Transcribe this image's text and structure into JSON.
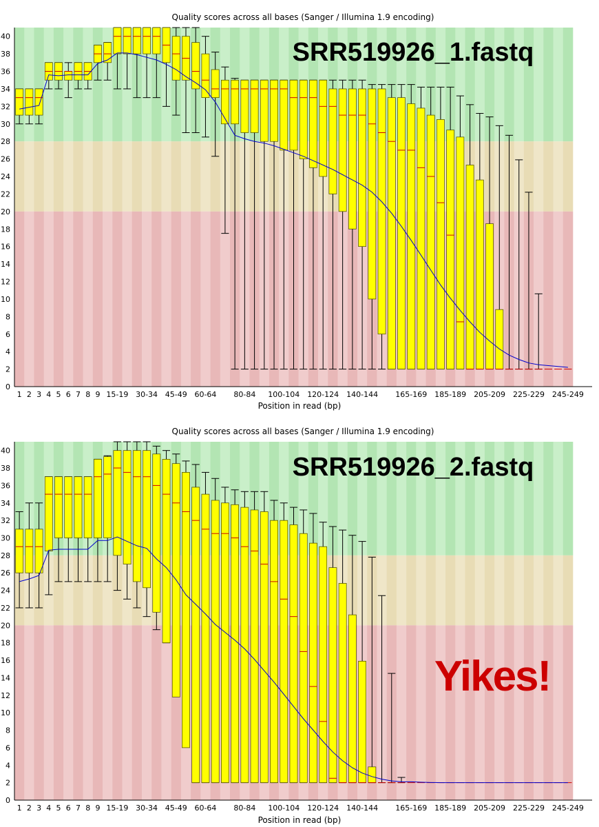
{
  "colors": {
    "good": "#b3e5b3",
    "good_alt": "#c9efc9",
    "warn": "#e8dcb5",
    "warn_alt": "#efe6c8",
    "bad": "#e8b8b8",
    "bad_alt": "#f0cccc",
    "box": "#ffff00",
    "box_stroke": "#444400",
    "median": "#cc0000",
    "mean": "#0000cc",
    "whisker": "#000000",
    "yikes": "#cc0000"
  },
  "chart_data": [
    {
      "type": "boxplot",
      "title": "Quality scores across all bases (Sanger / Illumina 1.9 encoding)",
      "xlabel": "Position in read (bp)",
      "ylabel": "",
      "ylim": [
        0,
        41
      ],
      "yticks": [
        0,
        2,
        4,
        6,
        8,
        10,
        12,
        14,
        16,
        18,
        20,
        22,
        24,
        26,
        28,
        30,
        32,
        34,
        36,
        38,
        40
      ],
      "zones": [
        {
          "name": "good",
          "from": 28,
          "to": 41
        },
        {
          "name": "warn",
          "from": 20,
          "to": 28
        },
        {
          "name": "bad",
          "from": 0,
          "to": 20
        }
      ],
      "overlay_label": "SRR519926_1.fastq",
      "categories": [
        "1",
        "2",
        "3",
        "4",
        "5",
        "6",
        "7",
        "8",
        "9",
        "10-14",
        "15-19",
        "20-24",
        "25-29",
        "30-34",
        "35-39",
        "40-44",
        "45-49",
        "50-54",
        "55-59",
        "60-64",
        "65-69",
        "70-74",
        "75-79",
        "80-84",
        "85-89",
        "90-94",
        "95-99",
        "100-104",
        "105-109",
        "110-114",
        "115-119",
        "120-124",
        "125-129",
        "130-134",
        "135-139",
        "140-144",
        "145-149",
        "150-154",
        "155-159",
        "160-164",
        "165-169",
        "170-174",
        "175-179",
        "180-184",
        "185-189",
        "190-194",
        "195-199",
        "200-204",
        "205-209",
        "210-214",
        "215-219",
        "220-224",
        "225-229",
        "230-234",
        "235-239",
        "240-244",
        "245-249"
      ],
      "tick_labels": [
        "1",
        "2",
        "3",
        "4",
        "5",
        "6",
        "7",
        "8",
        "9",
        "15-19",
        "30-34",
        "45-49",
        "60-64",
        "80-84",
        "100-104",
        "120-124",
        "140-144",
        "165-169",
        "185-189",
        "205-209",
        "225-229",
        "245-249"
      ],
      "q1": [
        31,
        31,
        31,
        35,
        35,
        35,
        35,
        35,
        37,
        37,
        38,
        38,
        38,
        38,
        38,
        37,
        35,
        35,
        34,
        33,
        33,
        30,
        30,
        29,
        29,
        28,
        28,
        27,
        27,
        26,
        25,
        24,
        22,
        20,
        18,
        16,
        10,
        6,
        2,
        2,
        2,
        2,
        2,
        2,
        2,
        2,
        2,
        2,
        2,
        2,
        2,
        2,
        2,
        2,
        2,
        2,
        2
      ],
      "q3": [
        34,
        34,
        34,
        37,
        37,
        36,
        37,
        37,
        39,
        39.3,
        41,
        41,
        41,
        41,
        41,
        41,
        40,
        40,
        39.3,
        38,
        36.2,
        35,
        35,
        35,
        35,
        35,
        35,
        35,
        35,
        35,
        35,
        35,
        34,
        34,
        34,
        34,
        34,
        34,
        33,
        33,
        32.3,
        31.8,
        31,
        30.5,
        29.3,
        28.5,
        25.3,
        23.6,
        18.6,
        8.8,
        2,
        2,
        2,
        2,
        2,
        2,
        2
      ],
      "median": [
        33,
        33,
        33,
        36,
        36,
        36,
        36,
        36,
        38,
        38,
        40,
        40,
        40,
        40,
        40,
        39,
        38,
        37.5,
        36,
        35,
        34,
        34,
        34,
        34,
        34,
        34,
        34,
        34,
        33,
        33,
        33,
        32,
        32,
        31,
        31,
        31,
        30,
        29,
        28,
        27,
        27,
        25,
        24,
        21,
        17.3,
        7.4,
        2,
        2,
        2,
        2,
        2,
        2,
        2,
        2,
        2,
        2,
        2
      ],
      "low": [
        30,
        30,
        30,
        34,
        34,
        33,
        34,
        34,
        35,
        35,
        34,
        34,
        33,
        33,
        33,
        32,
        31,
        29,
        29,
        28.5,
        26.3,
        17.5,
        2,
        2,
        2,
        2,
        2,
        2,
        2,
        2,
        2,
        2,
        2,
        2,
        2,
        2,
        2,
        2,
        2,
        2,
        2,
        2,
        2,
        2,
        2,
        2,
        2,
        2,
        2,
        2,
        2,
        2,
        2,
        2,
        2,
        2,
        2
      ],
      "high": [
        34,
        34,
        34,
        37,
        37,
        37,
        37,
        37,
        39,
        39.3,
        41,
        41,
        41,
        41,
        41,
        41,
        41,
        41,
        41,
        40,
        38.2,
        36.5,
        35.2,
        35,
        35,
        35,
        35,
        35,
        35,
        35,
        35,
        35,
        35,
        35,
        35,
        35,
        34.5,
        34.5,
        34.5,
        34.5,
        34.5,
        34.2,
        34.2,
        34.2,
        34.2,
        33.2,
        32.2,
        31.2,
        30.8,
        29.8,
        28.7,
        25.9,
        22.2,
        10.6,
        2,
        2,
        2
      ],
      "mean": [
        31.7,
        31.9,
        32.1,
        35.6,
        35.5,
        35.6,
        35.6,
        35.6,
        36.9,
        37.3,
        38.1,
        38.1,
        37.9,
        37.6,
        37.3,
        36.8,
        36.2,
        35.4,
        34.7,
        33.9,
        32.5,
        30.6,
        28.7,
        28.3,
        28,
        27.8,
        27.5,
        27.1,
        26.7,
        26.3,
        25.8,
        25.3,
        24.8,
        24.2,
        23.6,
        23,
        22.2,
        21.1,
        19.8,
        18.3,
        16.7,
        15,
        13.3,
        11.6,
        10.1,
        8.7,
        7.4,
        6.2,
        5.2,
        4.3,
        3.6,
        3.1,
        2.7,
        2.5,
        2.4,
        2.3,
        2.2
      ]
    },
    {
      "type": "boxplot",
      "title": "Quality scores across all bases (Sanger / Illumina 1.9 encoding)",
      "xlabel": "Position in read (bp)",
      "ylabel": "",
      "ylim": [
        0,
        41
      ],
      "yticks": [
        0,
        2,
        4,
        6,
        8,
        10,
        12,
        14,
        16,
        18,
        20,
        22,
        24,
        26,
        28,
        30,
        32,
        34,
        36,
        38,
        40
      ],
      "zones": [
        {
          "name": "good",
          "from": 28,
          "to": 41
        },
        {
          "name": "warn",
          "from": 20,
          "to": 28
        },
        {
          "name": "bad",
          "from": 0,
          "to": 20
        }
      ],
      "overlay_label": "SRR519926_2.fastq",
      "annotation": "Yikes!",
      "categories": [
        "1",
        "2",
        "3",
        "4",
        "5",
        "6",
        "7",
        "8",
        "9",
        "10-14",
        "15-19",
        "20-24",
        "25-29",
        "30-34",
        "35-39",
        "40-44",
        "45-49",
        "50-54",
        "55-59",
        "60-64",
        "65-69",
        "70-74",
        "75-79",
        "80-84",
        "85-89",
        "90-94",
        "95-99",
        "100-104",
        "105-109",
        "110-114",
        "115-119",
        "120-124",
        "125-129",
        "130-134",
        "135-139",
        "140-144",
        "145-149",
        "150-154",
        "155-159",
        "160-164",
        "165-169",
        "170-174",
        "175-179",
        "180-184",
        "185-189",
        "190-194",
        "195-199",
        "200-204",
        "205-209",
        "210-214",
        "215-219",
        "220-224",
        "225-229",
        "230-234",
        "235-239",
        "240-244",
        "245-249"
      ],
      "tick_labels": [
        "1",
        "2",
        "3",
        "4",
        "5",
        "6",
        "7",
        "8",
        "9",
        "15-19",
        "30-34",
        "45-49",
        "60-64",
        "80-84",
        "100-104",
        "120-124",
        "140-144",
        "165-169",
        "185-189",
        "205-209",
        "225-229",
        "245-249"
      ],
      "q1": [
        26,
        26,
        26,
        28.5,
        30,
        30,
        30,
        30,
        30,
        30,
        28,
        27,
        25,
        24.3,
        21.5,
        18,
        11.8,
        6,
        2,
        2,
        2,
        2,
        2,
        2,
        2,
        2,
        2,
        2,
        2,
        2,
        2,
        2,
        2,
        2,
        2,
        2,
        2,
        2,
        2,
        2,
        2,
        2,
        2,
        2,
        2,
        2,
        2,
        2,
        2,
        2,
        2,
        2,
        2,
        2,
        2,
        2,
        2
      ],
      "q3": [
        31,
        31,
        31,
        37,
        37,
        37,
        37,
        37,
        39,
        39.3,
        40,
        40,
        40,
        40,
        39.6,
        39,
        38.5,
        37.5,
        35.8,
        35,
        34.3,
        34,
        33.8,
        33.5,
        33.2,
        33,
        32,
        32,
        31.5,
        30.5,
        29.4,
        29,
        26.6,
        24.8,
        21.2,
        15.9,
        3.8,
        2,
        2,
        2,
        2,
        2,
        2,
        2,
        2,
        2,
        2,
        2,
        2,
        2,
        2,
        2,
        2,
        2,
        2,
        2,
        2
      ],
      "median": [
        29,
        29,
        29,
        35,
        35,
        35,
        35,
        35,
        37,
        37.3,
        38,
        37.5,
        37,
        37,
        36,
        35,
        34,
        33,
        32,
        31,
        30.5,
        30.5,
        30,
        29,
        28.5,
        27,
        25,
        23,
        21,
        17,
        13,
        9,
        2.5,
        2,
        2,
        2,
        2,
        2,
        2,
        2,
        2,
        2,
        2,
        2,
        2,
        2,
        2,
        2,
        2,
        2,
        2,
        2,
        2,
        2,
        2,
        2,
        2
      ],
      "low": [
        22,
        22,
        22,
        23.5,
        25,
        25,
        25,
        25,
        25,
        25,
        24,
        23,
        22,
        21,
        19.5,
        18,
        15.5,
        12.5,
        2,
        2,
        2,
        2,
        2,
        2,
        2,
        2,
        2,
        2,
        2,
        2,
        2,
        2,
        2,
        2,
        2,
        2,
        2,
        2,
        2,
        2,
        2,
        2,
        2,
        2,
        2,
        2,
        2,
        2,
        2,
        2,
        2,
        2,
        2,
        2,
        2,
        2,
        2
      ],
      "high": [
        33,
        34,
        34,
        37,
        37,
        37,
        37,
        37,
        39,
        39.4,
        41,
        41,
        41,
        41,
        40.5,
        40,
        39.6,
        38.8,
        38.4,
        37.5,
        36.8,
        35.8,
        35.5,
        35.3,
        35.3,
        35.3,
        34.3,
        34,
        33.5,
        33.2,
        32.8,
        31.8,
        31.3,
        30.9,
        30.3,
        29.6,
        27.8,
        23.4,
        14.5,
        2.6,
        2,
        2,
        2,
        2,
        2,
        2,
        2,
        2,
        2,
        2,
        2,
        2,
        2,
        2,
        2,
        2,
        2
      ],
      "mean": [
        25,
        25.3,
        25.7,
        28.6,
        28.7,
        28.7,
        28.7,
        28.7,
        29.7,
        29.7,
        30.1,
        29.6,
        29.1,
        28.8,
        27.6,
        26.6,
        25.2,
        23.5,
        22.4,
        21.3,
        20.1,
        19.2,
        18.3,
        17.3,
        16.1,
        14.8,
        13.5,
        12.1,
        10.7,
        9.3,
        8,
        6.7,
        5.5,
        4.5,
        3.7,
        3.1,
        2.7,
        2.4,
        2.2,
        2.1,
        2.1,
        2.05,
        2.02,
        2,
        2,
        2,
        2,
        2,
        2,
        2,
        2,
        2,
        2,
        2,
        2,
        2,
        2
      ]
    }
  ]
}
